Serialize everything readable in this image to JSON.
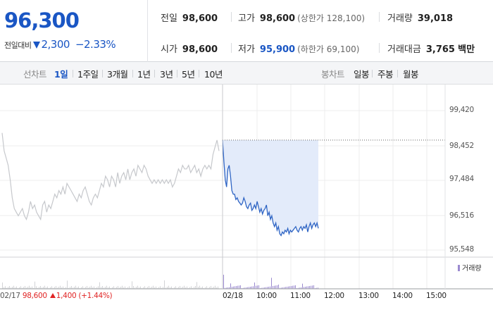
{
  "summary": {
    "current_price": "96,300",
    "change_label": "전일대비",
    "change_amount": "2,300",
    "change_percent": "−2.33%",
    "prev_close_label": "전일",
    "prev_close": "98,600",
    "open_label": "시가",
    "open": "98,600",
    "high_label": "고가",
    "high": "98,600",
    "upper_limit_label": "상한가",
    "upper_limit": "128,100",
    "low_label": "저가",
    "low": "95,900",
    "lower_limit_label": "하한가",
    "lower_limit": "69,100",
    "volume_label": "거래량",
    "volume": "39,018",
    "value_label": "거래대금",
    "value": "3,765",
    "value_unit": "백만",
    "colors": {
      "down": "#1a56c4",
      "up": "#e02424"
    }
  },
  "tabs": {
    "line_label": "선차트",
    "periods": [
      "1일",
      "1주일",
      "3개월",
      "1년",
      "3년",
      "5년",
      "10년"
    ],
    "active_period": "1일",
    "candle_label": "봉차트",
    "candles": [
      "일봉",
      "주봉",
      "월봉"
    ]
  },
  "prev_day": {
    "date": "02/17",
    "price": "98,600",
    "change": "1,400",
    "rate": "(+1.44%)"
  },
  "chart_data": {
    "type": "line",
    "y_ticks": [
      "99,420",
      "98,452",
      "97,484",
      "96,516",
      "95,548"
    ],
    "ylim": [
      95548,
      99420
    ],
    "x_ticks": [
      "02/18",
      "10:00",
      "11:00",
      "12:00",
      "13:00",
      "14:00",
      "15:00"
    ],
    "reference_line": 98600,
    "volume_legend": "거래량",
    "series": [
      {
        "color": "#c6c8cc",
        "values": [
          98800,
          98300,
          98100,
          97900,
          97500,
          97000,
          96700,
          96600,
          96500,
          96600,
          96700,
          96500,
          96400,
          96600,
          96900,
          96700,
          96800,
          96600,
          96500,
          96400,
          96800,
          96900,
          96600,
          96800,
          96700,
          96900,
          97100,
          97000,
          97200,
          97100,
          97300,
          97100,
          97400,
          97300,
          97200,
          97100,
          97000,
          96900,
          97100,
          97000,
          97200,
          97300,
          97100,
          96900,
          96800,
          97000,
          97100,
          97000,
          97200,
          97400,
          97300,
          97600,
          97500,
          97300,
          97600,
          97500,
          97300,
          97700,
          97400,
          97600,
          97700,
          97500,
          97800,
          97500,
          97700,
          97800,
          97600,
          97900,
          97800,
          97700,
          97900,
          97800,
          97600,
          97500,
          97400,
          97500,
          97400,
          97500,
          97400,
          97500,
          97400,
          97500,
          97400,
          97500,
          97300,
          97400,
          97600,
          97800,
          97700,
          97900,
          97800,
          97800,
          97900,
          97700,
          97800,
          97900,
          97700,
          97800,
          97600,
          97800,
          97900,
          97800,
          97900,
          97800,
          98200,
          98400,
          98600,
          98300
        ]
      },
      {
        "color": "#2e64c4",
        "values": [
          98600,
          98000,
          97500,
          97300,
          97800,
          97900,
          97600,
          97200,
          97100,
          97100,
          96950,
          97000,
          96900,
          96850,
          96800,
          96850,
          97000,
          96900,
          96750,
          96700,
          96800,
          96850,
          96650,
          96700,
          96800,
          96700,
          96900,
          96750,
          96600,
          96700,
          96550,
          96650,
          96700,
          96800,
          96500,
          96600,
          96400,
          96500,
          96300,
          96200,
          96300,
          96100,
          96200,
          96000,
          95950,
          96050,
          96000,
          96100,
          96050,
          96150,
          96000,
          96100,
          96050,
          96100,
          96150,
          96200,
          96100,
          96050,
          96150,
          96200,
          96100,
          96200,
          96150,
          96250,
          96050,
          96200,
          96300,
          96150,
          96250,
          96300,
          96200,
          96300,
          96150
        ]
      }
    ],
    "volume_scale": [
      0,
      100
    ]
  }
}
